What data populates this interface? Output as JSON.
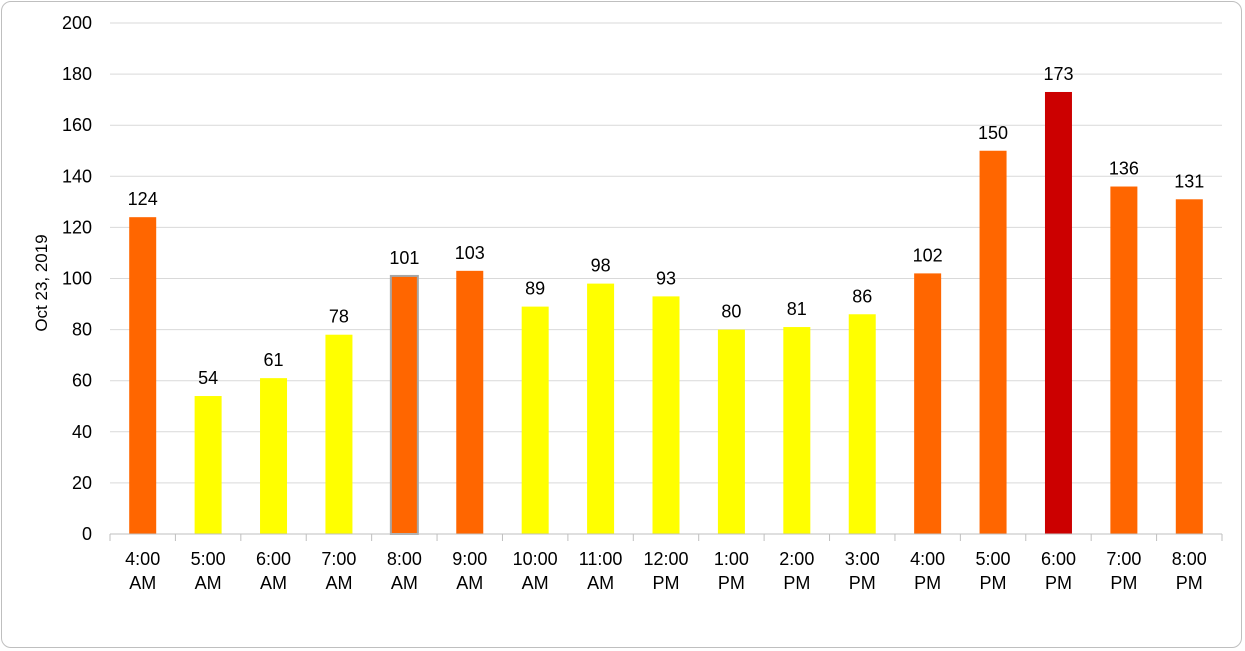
{
  "chart_data": {
    "type": "bar",
    "title": "",
    "xlabel": "",
    "ylabel": "Oct 23, 2019",
    "ylim": [
      0,
      200
    ],
    "yticks": [
      0,
      20,
      40,
      60,
      80,
      100,
      120,
      140,
      160,
      180,
      200
    ],
    "grid": true,
    "categories": [
      [
        "4:00",
        "AM"
      ],
      [
        "5:00",
        "AM"
      ],
      [
        "6:00",
        "AM"
      ],
      [
        "7:00",
        "AM"
      ],
      [
        "8:00",
        "AM"
      ],
      [
        "9:00",
        "AM"
      ],
      [
        "10:00",
        "AM"
      ],
      [
        "11:00",
        "AM"
      ],
      [
        "12:00",
        "PM"
      ],
      [
        "1:00",
        "PM"
      ],
      [
        "2:00",
        "PM"
      ],
      [
        "3:00",
        "PM"
      ],
      [
        "4:00",
        "PM"
      ],
      [
        "5:00",
        "PM"
      ],
      [
        "6:00",
        "PM"
      ],
      [
        "7:00",
        "PM"
      ],
      [
        "8:00",
        "PM"
      ]
    ],
    "values": [
      124,
      54,
      61,
      78,
      101,
      103,
      89,
      98,
      93,
      80,
      81,
      86,
      102,
      150,
      173,
      136,
      131
    ],
    "colors": [
      "#ff6600",
      "#ffff00",
      "#ffff00",
      "#ffff00",
      "#ff6600",
      "#ff6600",
      "#ffff00",
      "#ffff00",
      "#ffff00",
      "#ffff00",
      "#ffff00",
      "#ffff00",
      "#ff6600",
      "#ff6600",
      "#cc0000",
      "#ff6600",
      "#ff6600"
    ],
    "highlighted_index": 4,
    "highlight_border_color": "#a6a6a6"
  }
}
